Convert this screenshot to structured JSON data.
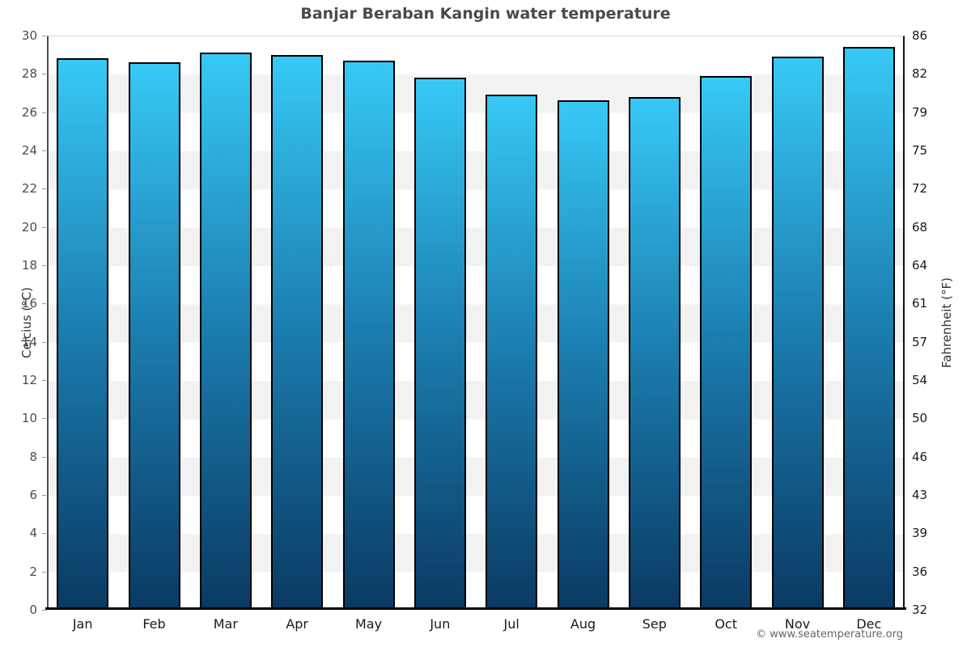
{
  "footer": {
    "copyright": "© www.seatemperature.org"
  },
  "chart_data": {
    "type": "bar",
    "title": "Banjar Beraban Kangin water temperature",
    "categories": [
      "Jan",
      "Feb",
      "Mar",
      "Apr",
      "May",
      "Jun",
      "Jul",
      "Aug",
      "Sep",
      "Oct",
      "Nov",
      "Dec"
    ],
    "values": [
      28.8,
      28.6,
      29.1,
      29.0,
      28.7,
      27.8,
      26.9,
      26.6,
      26.8,
      27.9,
      28.9,
      29.4
    ],
    "xlabel": "",
    "ylabel": "Celcius (°C)",
    "ylabel_right": "Fahrenheit (°F)",
    "ylim": [
      0,
      30
    ],
    "yticks_celsius": [
      30,
      28,
      26,
      24,
      22,
      20,
      18,
      16,
      14,
      12,
      10,
      8,
      6,
      4,
      2,
      0
    ],
    "yticks_fahrenheit": [
      86,
      82,
      79,
      75,
      72,
      68,
      64,
      61,
      57,
      54,
      50,
      46,
      43,
      39,
      36,
      32
    ],
    "grid": "alternating horizontal bands every 2°C",
    "legend": false,
    "colors": {
      "bar_top": "#37c9f6",
      "bar_mid": "#1b7cae",
      "bar_bottom": "#0a3a63",
      "bar_border": "#000000",
      "band_gray": "#f2f2f2",
      "band_white": "#ffffff",
      "title_text": "#4a4a4a",
      "axis_text": "#333333",
      "footer_text": "#666666"
    }
  }
}
